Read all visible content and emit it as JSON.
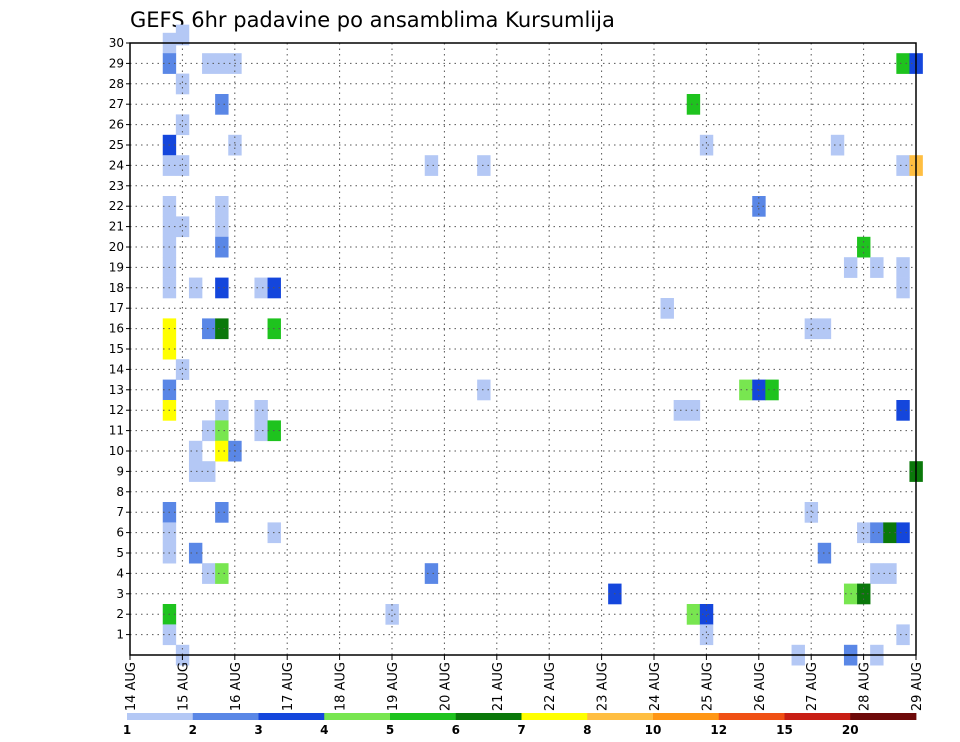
{
  "chart_data": {
    "type": "heatmap",
    "title": "GEFS 6hr padavine po ansamblima Kursumlija",
    "x_tick_labels": [
      "14 AUG",
      "15 AUG",
      "16 AUG",
      "17 AUG",
      "18 AUG",
      "19 AUG",
      "20 AUG",
      "21 AUG",
      "22 AUG",
      "23 AUG",
      "24 AUG",
      "25 AUG",
      "26 AUG",
      "27 AUG",
      "28 AUG",
      "29 AUG"
    ],
    "x_range": [
      0,
      60
    ],
    "y_ticks": [
      1,
      2,
      3,
      4,
      5,
      6,
      7,
      8,
      9,
      10,
      11,
      12,
      13,
      14,
      15,
      16,
      17,
      18,
      19,
      20,
      21,
      22,
      23,
      24,
      25,
      26,
      27,
      28,
      29,
      30
    ],
    "y_range": [
      0,
      30
    ],
    "grid": true,
    "colorbar": {
      "position": "bottom",
      "labels": [
        "1",
        "2",
        "3",
        "4",
        "5",
        "6",
        "7",
        "8",
        "10",
        "12",
        "15",
        "20"
      ],
      "colors": [
        "#b4c8f5",
        "#5a87e6",
        "#1446dc",
        "#78e650",
        "#1ec31e",
        "#0a780a",
        "#ffff00",
        "#ffbe41",
        "#ff9614",
        "#f05014",
        "#c81e14",
        "#6e0a0a"
      ]
    },
    "cells": [
      [
        3,
        30,
        1
      ],
      [
        4,
        30.4,
        1
      ],
      [
        3,
        29,
        2
      ],
      [
        6,
        29,
        1
      ],
      [
        7,
        29,
        1
      ],
      [
        8,
        29,
        1
      ],
      [
        59,
        29,
        5
      ],
      [
        60,
        29,
        3
      ],
      [
        4,
        28,
        1
      ],
      [
        7,
        27,
        2
      ],
      [
        43,
        27,
        5
      ],
      [
        4,
        26,
        1
      ],
      [
        3,
        25,
        3
      ],
      [
        8,
        25,
        1
      ],
      [
        44,
        25,
        1
      ],
      [
        54,
        25,
        1
      ],
      [
        3,
        24,
        1
      ],
      [
        4,
        24,
        1
      ],
      [
        23,
        24,
        1
      ],
      [
        27,
        24,
        1
      ],
      [
        59,
        24,
        1
      ],
      [
        60,
        24,
        8
      ],
      [
        3,
        22,
        1
      ],
      [
        7,
        22,
        1
      ],
      [
        48,
        22,
        2
      ],
      [
        3,
        21,
        1
      ],
      [
        4,
        21,
        1
      ],
      [
        7,
        21,
        1
      ],
      [
        3,
        20,
        1
      ],
      [
        7,
        20,
        2
      ],
      [
        56,
        20,
        5
      ],
      [
        3,
        19,
        1
      ],
      [
        55,
        19,
        1
      ],
      [
        57,
        19,
        1
      ],
      [
        59,
        19,
        1
      ],
      [
        3,
        18,
        1
      ],
      [
        5,
        18,
        1
      ],
      [
        7,
        18,
        3
      ],
      [
        10,
        18,
        1
      ],
      [
        11,
        18,
        3
      ],
      [
        59,
        18,
        1
      ],
      [
        41,
        17,
        1
      ],
      [
        3,
        16,
        7
      ],
      [
        6,
        16,
        2
      ],
      [
        7,
        16,
        6
      ],
      [
        11,
        16,
        5
      ],
      [
        52,
        16,
        1
      ],
      [
        53,
        16,
        1
      ],
      [
        3,
        15,
        7
      ],
      [
        4,
        14,
        1
      ],
      [
        3,
        13,
        2
      ],
      [
        27,
        13,
        1
      ],
      [
        47,
        13,
        4
      ],
      [
        48,
        13,
        3
      ],
      [
        49,
        13,
        5
      ],
      [
        3,
        12,
        7
      ],
      [
        7,
        12,
        1
      ],
      [
        10,
        12,
        1
      ],
      [
        42,
        12,
        1
      ],
      [
        43,
        12,
        1
      ],
      [
        59,
        12,
        3
      ],
      [
        6,
        11,
        1
      ],
      [
        7,
        11,
        4
      ],
      [
        10,
        11,
        1
      ],
      [
        11,
        11,
        5
      ],
      [
        5,
        10,
        1
      ],
      [
        7,
        10,
        7
      ],
      [
        8,
        10,
        2
      ],
      [
        5,
        9,
        1
      ],
      [
        6,
        9,
        1
      ],
      [
        60,
        9,
        6
      ],
      [
        3,
        7,
        2
      ],
      [
        7,
        7,
        2
      ],
      [
        52,
        7,
        1
      ],
      [
        3,
        6,
        1
      ],
      [
        11,
        6,
        1
      ],
      [
        56,
        6,
        1
      ],
      [
        57,
        6,
        2
      ],
      [
        58,
        6,
        6
      ],
      [
        59,
        6,
        3
      ],
      [
        3,
        5,
        1
      ],
      [
        5,
        5,
        2
      ],
      [
        53,
        5,
        2
      ],
      [
        6,
        4,
        1
      ],
      [
        7,
        4,
        4
      ],
      [
        23,
        4,
        2
      ],
      [
        57,
        4,
        1
      ],
      [
        58,
        4,
        1
      ],
      [
        37,
        3,
        3
      ],
      [
        55,
        3,
        4
      ],
      [
        56,
        3,
        6
      ],
      [
        3,
        2,
        5
      ],
      [
        20,
        2,
        1
      ],
      [
        43,
        2,
        4
      ],
      [
        44,
        2,
        3
      ],
      [
        3,
        1,
        1
      ],
      [
        44,
        1,
        1
      ],
      [
        59,
        1,
        1
      ],
      [
        4,
        0,
        1
      ],
      [
        51,
        0,
        1
      ],
      [
        55,
        0,
        2
      ],
      [
        57,
        0,
        1
      ]
    ]
  }
}
